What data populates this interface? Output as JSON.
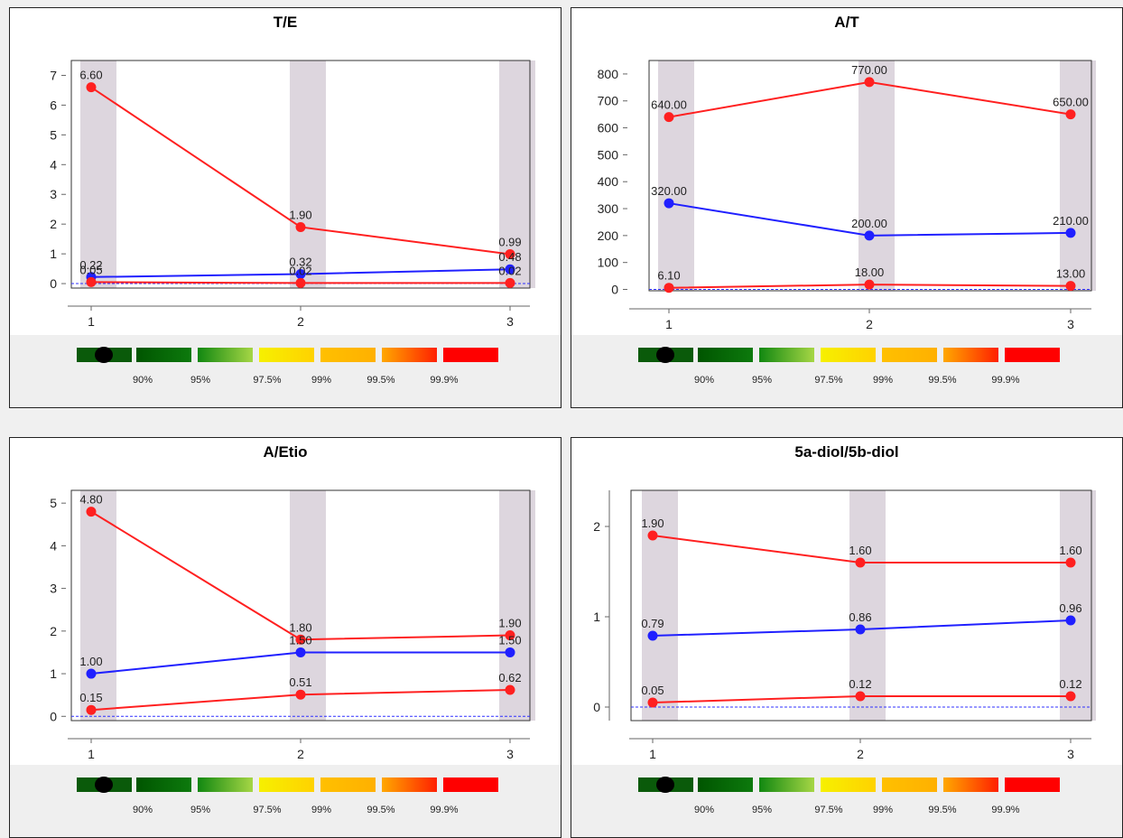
{
  "colors": {
    "upper_lower_series": "#ff2020",
    "sample_series": "#2020ff",
    "band": "#ddd6de",
    "baseline": "#3030ff"
  },
  "legend": {
    "labels": [
      "90%",
      "95%",
      "97.5%",
      "99%",
      "99.5%",
      "99.9%"
    ],
    "swatches": [
      {
        "from": "#0a5a0a",
        "to": "#0a5a0a",
        "marker": "black-dot-icon"
      },
      {
        "from": "#005500",
        "to": "#0d7a0d"
      },
      {
        "from": "#118811",
        "to": "#a6d645"
      },
      {
        "from": "#f6f000",
        "to": "#ffd200"
      },
      {
        "from": "#ffc000",
        "to": "#ffb000"
      },
      {
        "from": "#ffa800",
        "to": "#ff2000"
      },
      {
        "from": "#ff0000",
        "to": "#ff0000"
      }
    ]
  },
  "chart_data": [
    {
      "type": "line",
      "title": "T/E",
      "x": [
        1,
        2,
        3
      ],
      "ylim": [
        -0.15,
        7.5
      ],
      "yticks": [
        0,
        1,
        2,
        3,
        4,
        5,
        6,
        7
      ],
      "band_x": [
        1,
        2,
        3
      ],
      "series": [
        {
          "color": "red",
          "values": [
            6.6,
            1.9,
            0.99
          ],
          "labels": [
            "6.60",
            "1.90",
            "0.99"
          ]
        },
        {
          "color": "blue",
          "values": [
            0.22,
            0.32,
            0.48
          ],
          "labels": [
            "0.22",
            "0.32",
            "0.48"
          ]
        },
        {
          "color": "red",
          "values": [
            0.05,
            0.02,
            0.02
          ],
          "labels": [
            "0.05",
            "0.02",
            "0.02"
          ]
        }
      ],
      "baseline_y": 0
    },
    {
      "type": "line",
      "title": "A/T",
      "x": [
        1,
        2,
        3
      ],
      "ylim": [
        -5,
        850
      ],
      "yticks": [
        0,
        100,
        200,
        300,
        400,
        500,
        600,
        700,
        800
      ],
      "band_x": [
        1,
        2,
        3
      ],
      "series": [
        {
          "color": "red",
          "values": [
            640,
            770,
            650
          ],
          "labels": [
            "640.00",
            "770.00",
            "650.00"
          ]
        },
        {
          "color": "blue",
          "values": [
            320,
            200,
            210
          ],
          "labels": [
            "320.00",
            "200.00",
            "210.00"
          ]
        },
        {
          "color": "red",
          "values": [
            6.1,
            18,
            13
          ],
          "labels": [
            "6.10",
            "18.00",
            "13.00"
          ]
        }
      ],
      "baseline_y": 0
    },
    {
      "type": "line",
      "title": "A/Etio",
      "x": [
        1,
        2,
        3
      ],
      "ylim": [
        -0.1,
        5.3
      ],
      "yticks": [
        0,
        1,
        2,
        3,
        4,
        5
      ],
      "band_x": [
        1,
        2,
        3
      ],
      "series": [
        {
          "color": "red",
          "values": [
            4.8,
            1.8,
            1.9
          ],
          "labels": [
            "4.80",
            "1.80",
            "1.90"
          ]
        },
        {
          "color": "blue",
          "values": [
            1.0,
            1.5,
            1.5
          ],
          "labels": [
            "1.00",
            "1.50",
            "1.50"
          ]
        },
        {
          "color": "red",
          "values": [
            0.15,
            0.51,
            0.62
          ],
          "labels": [
            "0.15",
            "0.51",
            "0.62"
          ]
        }
      ],
      "baseline_y": 0
    },
    {
      "type": "line",
      "title": "5a-diol/5b-diol",
      "x": [
        1,
        2,
        3
      ],
      "ylim": [
        -0.15,
        2.4
      ],
      "yticks": [
        0,
        1,
        2
      ],
      "band_x": [
        1,
        2,
        3
      ],
      "series": [
        {
          "color": "red",
          "values": [
            1.9,
            1.6,
            1.6
          ],
          "labels": [
            "1.90",
            "1.60",
            "1.60"
          ]
        },
        {
          "color": "blue",
          "values": [
            0.79,
            0.86,
            0.96
          ],
          "labels": [
            "0.79",
            "0.86",
            "0.96"
          ]
        },
        {
          "color": "red",
          "values": [
            0.05,
            0.12,
            0.12
          ],
          "labels": [
            "0.05",
            "0.12",
            "0.12"
          ]
        }
      ],
      "baseline_y": 0
    }
  ]
}
